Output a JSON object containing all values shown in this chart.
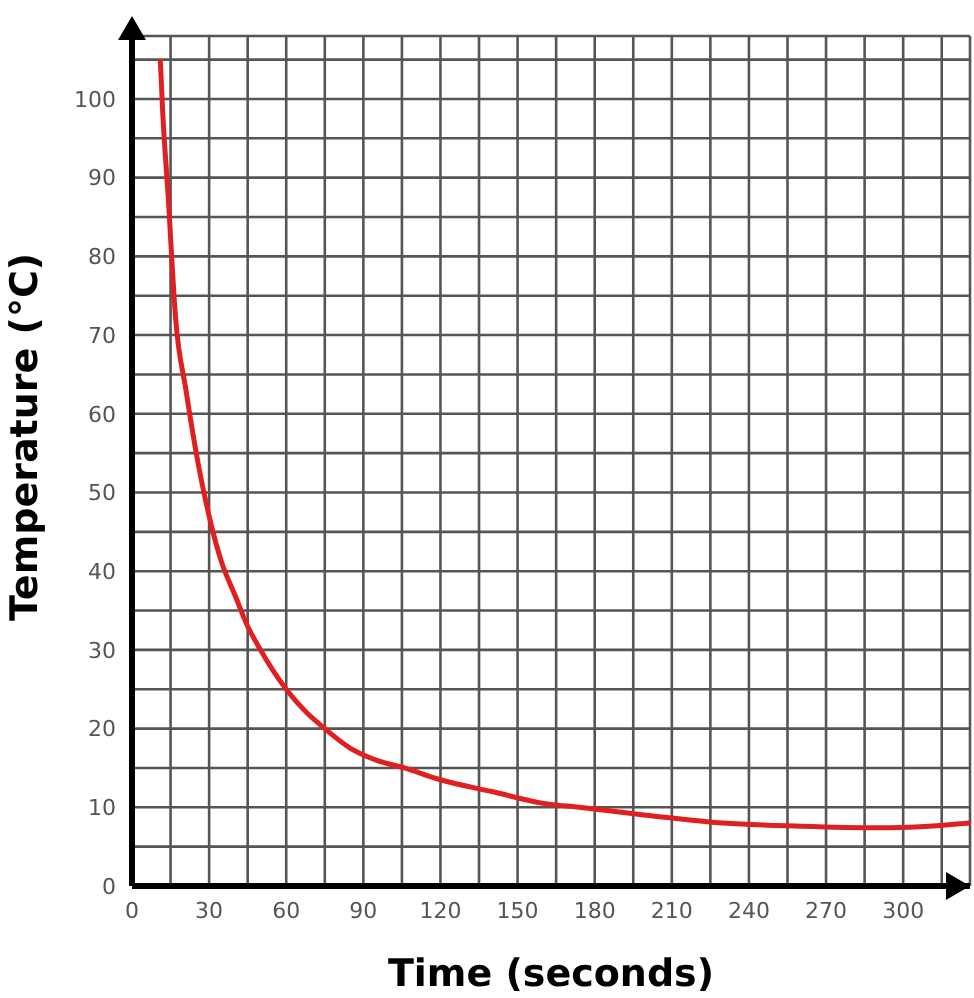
{
  "chart_data": {
    "type": "line",
    "xlabel": "Time (seconds)",
    "ylabel": "Temperature (°C)",
    "x": [
      11,
      12,
      14,
      17,
      21,
      25,
      30,
      35,
      40,
      45,
      50,
      60,
      68,
      75,
      85,
      95,
      106,
      120,
      140,
      160,
      174,
      200,
      230,
      260,
      290,
      310,
      326
    ],
    "series": [
      {
        "color": "#e02020",
        "values": [
          105,
          98,
          88,
          72,
          63,
          55,
          47,
          41,
          37,
          33,
          30,
          25,
          22,
          20,
          17.5,
          16,
          15,
          13.5,
          12,
          10.5,
          10,
          9,
          8,
          7.6,
          7.4,
          7.6,
          8
        ]
      }
    ],
    "xlim": [
      0,
      326
    ],
    "ylim": [
      0,
      108
    ],
    "xticks": [
      0,
      {
        "value": 15,
        "label": null
      },
      30,
      {
        "value": 45,
        "label": null
      },
      60,
      {
        "value": 75,
        "label": null
      },
      90,
      {
        "value": 105,
        "label": null
      },
      120,
      {
        "value": 135,
        "label": null
      },
      150,
      {
        "value": 165,
        "label": null
      },
      180,
      {
        "value": 195,
        "label": null
      },
      210,
      {
        "value": 225,
        "label": null
      },
      240,
      {
        "value": 255,
        "label": null
      },
      270,
      {
        "value": 285,
        "label": null
      },
      300,
      {
        "value": 315,
        "label": null
      }
    ],
    "yticks": [
      0,
      {
        "value": 5,
        "label": null
      },
      10,
      {
        "value": 15,
        "label": null
      },
      20,
      {
        "value": 25,
        "label": null
      },
      30,
      {
        "value": 35,
        "label": null
      },
      40,
      {
        "value": 45,
        "label": null
      },
      50,
      {
        "value": 55,
        "label": null
      },
      60,
      {
        "value": 65,
        "label": null
      },
      70,
      {
        "value": 75,
        "label": null
      },
      80,
      {
        "value": 85,
        "label": null
      },
      90,
      {
        "value": 95,
        "label": null
      },
      100,
      {
        "value": 105,
        "label": null
      }
    ],
    "grid": true,
    "marker": "none",
    "line_style": "solid"
  }
}
